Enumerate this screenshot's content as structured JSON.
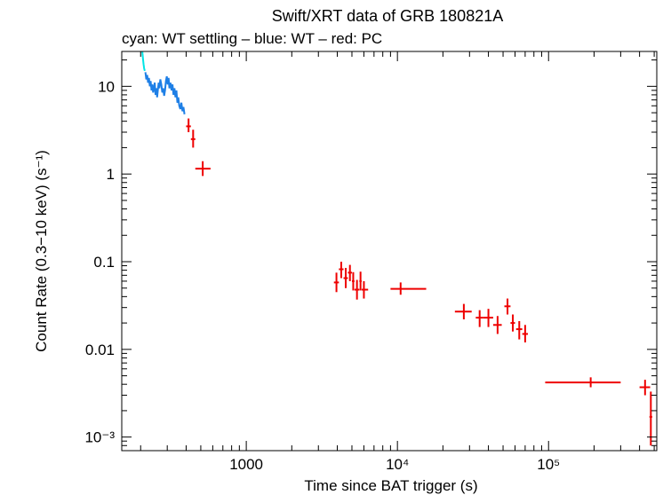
{
  "chart_data": {
    "type": "scatter",
    "title": "Swift/XRT data of GRB 180821A",
    "subtitle": "cyan: WT settling – blue: WT – red: PC",
    "xlabel": "Time since BAT trigger (s)",
    "ylabel": "Count Rate (0.3−10 keV) (s⁻¹)",
    "xscale": "log",
    "yscale": "log",
    "xlim": [
      150,
      520000
    ],
    "ylim": [
      0.0007,
      25
    ],
    "x_ticks": [
      {
        "value": 1000,
        "label": "1000"
      },
      {
        "value": 10000,
        "label": "10⁴"
      },
      {
        "value": 100000,
        "label": "10⁵"
      }
    ],
    "y_ticks": [
      {
        "value": 0.001,
        "label": "10⁻³"
      },
      {
        "value": 0.01,
        "label": "0.01"
      },
      {
        "value": 0.1,
        "label": "0.1"
      },
      {
        "value": 1,
        "label": "1"
      },
      {
        "value": 10,
        "label": "10"
      }
    ],
    "grid": false,
    "colors": {
      "wt_settling": "#00e5e5",
      "wt": "#1e7fe6",
      "pc": "#ee0000"
    },
    "series": [
      {
        "key": "wt_settling",
        "color": "#00e5e5",
        "style": "line",
        "points": [
          [
            205,
            25
          ],
          [
            207,
            21
          ],
          [
            209,
            18
          ],
          [
            211,
            16
          ],
          [
            213,
            15
          ]
        ]
      },
      {
        "key": "wt",
        "color": "#1e7fe6",
        "style": "line",
        "points": [
          [
            215,
            14.5
          ],
          [
            218,
            12
          ],
          [
            221,
            13.5
          ],
          [
            224,
            11
          ],
          [
            227,
            12.5
          ],
          [
            230,
            10
          ],
          [
            233,
            11.5
          ],
          [
            236,
            9
          ],
          [
            239,
            10.5
          ],
          [
            242,
            8.5
          ],
          [
            245,
            9.5
          ],
          [
            248,
            11
          ],
          [
            251,
            8
          ],
          [
            254,
            9.5
          ],
          [
            257,
            7.5
          ],
          [
            260,
            9
          ],
          [
            263,
            11
          ],
          [
            266,
            9.5
          ],
          [
            270,
            12
          ],
          [
            274,
            10.5
          ],
          [
            278,
            8.5
          ],
          [
            282,
            9.5
          ],
          [
            286,
            7.8
          ],
          [
            290,
            9
          ],
          [
            294,
            11.5
          ],
          [
            298,
            13
          ],
          [
            302,
            10.5
          ],
          [
            306,
            12.5
          ],
          [
            310,
            9.5
          ],
          [
            315,
            11
          ],
          [
            320,
            9
          ],
          [
            325,
            10.5
          ],
          [
            330,
            8
          ],
          [
            335,
            9.5
          ],
          [
            340,
            7.5
          ],
          [
            345,
            9
          ],
          [
            350,
            6.5
          ],
          [
            355,
            7.5
          ],
          [
            360,
            6
          ],
          [
            366,
            5.5
          ],
          [
            372,
            6.5
          ],
          [
            378,
            5.2
          ],
          [
            384,
            5.8
          ],
          [
            390,
            4.8
          ]
        ]
      },
      {
        "key": "pc",
        "color": "#ee0000",
        "style": "errorbars",
        "points": [
          {
            "x": 415,
            "xlo": 400,
            "xhi": 430,
            "y": 3.5,
            "ylo": 3.0,
            "yhi": 4.3
          },
          {
            "x": 445,
            "xlo": 430,
            "xhi": 460,
            "y": 2.5,
            "ylo": 2.0,
            "yhi": 3.2
          },
          {
            "x": 515,
            "xlo": 460,
            "xhi": 580,
            "y": 1.15,
            "ylo": 0.95,
            "yhi": 1.4
          },
          {
            "x": 3950,
            "xlo": 3800,
            "xhi": 4100,
            "y": 0.058,
            "ylo": 0.045,
            "yhi": 0.075
          },
          {
            "x": 4250,
            "xlo": 4100,
            "xhi": 4400,
            "y": 0.082,
            "ylo": 0.065,
            "yhi": 0.1
          },
          {
            "x": 4550,
            "xlo": 4400,
            "xhi": 4700,
            "y": 0.065,
            "ylo": 0.05,
            "yhi": 0.085
          },
          {
            "x": 4850,
            "xlo": 4700,
            "xhi": 5000,
            "y": 0.075,
            "ylo": 0.06,
            "yhi": 0.092
          },
          {
            "x": 5100,
            "xlo": 5000,
            "xhi": 5200,
            "y": 0.06,
            "ylo": 0.047,
            "yhi": 0.076
          },
          {
            "x": 5400,
            "xlo": 5200,
            "xhi": 5600,
            "y": 0.048,
            "ylo": 0.037,
            "yhi": 0.062
          },
          {
            "x": 5700,
            "xlo": 5600,
            "xhi": 5800,
            "y": 0.06,
            "ylo": 0.047,
            "yhi": 0.077
          },
          {
            "x": 6000,
            "xlo": 5800,
            "xhi": 6400,
            "y": 0.048,
            "ylo": 0.038,
            "yhi": 0.06
          },
          {
            "x": 10500,
            "xlo": 9000,
            "xhi": 15500,
            "y": 0.049,
            "ylo": 0.042,
            "yhi": 0.058
          },
          {
            "x": 27500,
            "xlo": 24000,
            "xhi": 31000,
            "y": 0.027,
            "ylo": 0.022,
            "yhi": 0.033
          },
          {
            "x": 35000,
            "xlo": 33000,
            "xhi": 37000,
            "y": 0.023,
            "ylo": 0.018,
            "yhi": 0.028
          },
          {
            "x": 40000,
            "xlo": 37000,
            "xhi": 43000,
            "y": 0.023,
            "ylo": 0.018,
            "yhi": 0.029
          },
          {
            "x": 46000,
            "xlo": 43000,
            "xhi": 49000,
            "y": 0.019,
            "ylo": 0.015,
            "yhi": 0.024
          },
          {
            "x": 53500,
            "xlo": 51000,
            "xhi": 56000,
            "y": 0.031,
            "ylo": 0.025,
            "yhi": 0.038
          },
          {
            "x": 58000,
            "xlo": 56000,
            "xhi": 60000,
            "y": 0.02,
            "ylo": 0.016,
            "yhi": 0.025
          },
          {
            "x": 64000,
            "xlo": 61000,
            "xhi": 67000,
            "y": 0.017,
            "ylo": 0.013,
            "yhi": 0.021
          },
          {
            "x": 70000,
            "xlo": 67000,
            "xhi": 73000,
            "y": 0.015,
            "ylo": 0.012,
            "yhi": 0.019
          },
          {
            "x": 190000,
            "xlo": 95000,
            "xhi": 300000,
            "y": 0.0042,
            "ylo": 0.0037,
            "yhi": 0.0048
          },
          {
            "x": 435000,
            "xlo": 400000,
            "xhi": 470000,
            "y": 0.0037,
            "ylo": 0.003,
            "yhi": 0.0045
          },
          {
            "x": 475000,
            "xlo": 465000,
            "xhi": 485000,
            "y": 0.0017,
            "ylo": 0.0008,
            "yhi": 0.0033
          }
        ]
      }
    ]
  }
}
